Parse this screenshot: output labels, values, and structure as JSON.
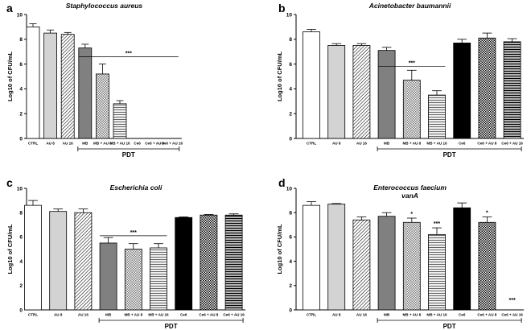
{
  "chart_data": [
    {
      "type": "bar",
      "panel": "a",
      "title": "Staphylococcus aureus",
      "ylabel": "Log10 of CFU/mL",
      "ylim": [
        0,
        10
      ],
      "yticks": [
        0,
        2,
        4,
        6,
        8,
        10
      ],
      "categories": [
        "CTRL",
        "AU 8",
        "AU 16",
        "MB",
        "MB + AU 8",
        "MB + AU 16",
        "Ce6",
        "Ce6 + AU 8",
        "Ce6 + AU 16"
      ],
      "values": [
        9.0,
        8.5,
        8.4,
        7.3,
        5.2,
        2.8,
        0,
        0,
        0
      ],
      "errors": [
        0.25,
        0.25,
        0.15,
        0.3,
        0.8,
        0.25,
        0,
        0,
        0
      ],
      "group_label": "PDT",
      "group_range": [
        3,
        8
      ],
      "annotations": [
        {
          "text": "***",
          "type": "line",
          "from": 3,
          "to": 8,
          "y": 6.6
        }
      ]
    },
    {
      "type": "bar",
      "panel": "b",
      "title": "Acinetobacter baumannii",
      "ylabel": "Log10 of CFU/mL",
      "ylim": [
        0,
        10
      ],
      "yticks": [
        0,
        2,
        4,
        6,
        8,
        10
      ],
      "categories": [
        "CTRL",
        "AU 8",
        "AU 16",
        "MB",
        "MB + AU 8",
        "MB + AU 16",
        "Ce6",
        "Ce6 + AU 8",
        "Ce6 + AU 16"
      ],
      "values": [
        8.6,
        7.5,
        7.5,
        7.1,
        4.7,
        3.5,
        7.7,
        8.1,
        7.8
      ],
      "errors": [
        0.2,
        0.15,
        0.15,
        0.25,
        0.8,
        0.35,
        0.3,
        0.4,
        0.25
      ],
      "group_label": "PDT",
      "group_range": [
        3,
        8
      ],
      "annotations": [
        {
          "text": "***",
          "type": "line",
          "from": 3,
          "to": 5,
          "y": 5.8
        }
      ]
    },
    {
      "type": "bar",
      "panel": "c",
      "title": "Escherichia coli",
      "ylabel": "Log10 of CFU/mL",
      "ylim": [
        0,
        10
      ],
      "yticks": [
        0,
        2,
        4,
        6,
        8,
        10
      ],
      "categories": [
        "CTRL",
        "AU 8",
        "AU 16",
        "MB",
        "MB + AU 8",
        "MB + AU 16",
        "Ce6",
        "Ce6 + AU 8",
        "Ce6 + AU 16"
      ],
      "values": [
        8.6,
        8.1,
        8.0,
        5.5,
        5.0,
        5.1,
        7.6,
        7.8,
        7.8
      ],
      "errors": [
        0.4,
        0.2,
        0.3,
        0.45,
        0.45,
        0.35,
        0.05,
        0.05,
        0.1
      ],
      "group_label": "PDT",
      "group_range": [
        3,
        8
      ],
      "annotations": [
        {
          "text": "***",
          "type": "line",
          "from": 3,
          "to": 5,
          "y": 6.1
        }
      ]
    },
    {
      "type": "bar",
      "panel": "d",
      "title": "Enterococcus faecium",
      "subtitle": "vanA",
      "ylabel": "Log10 of CFU/mL",
      "ylim": [
        0,
        10
      ],
      "yticks": [
        0,
        2,
        4,
        6,
        8,
        10
      ],
      "categories": [
        "CTRL",
        "AU 8",
        "AU 16",
        "MB",
        "MB + AU 8",
        "MB + AU 16",
        "Ce6",
        "Ce6 + AU 8",
        "Ce6 + AU 16"
      ],
      "values": [
        8.6,
        8.7,
        7.4,
        7.7,
        7.2,
        6.2,
        8.4,
        7.2,
        0
      ],
      "errors": [
        0.3,
        0.05,
        0.25,
        0.3,
        0.35,
        0.55,
        0.4,
        0.45,
        0
      ],
      "group_label": "PDT",
      "group_range": [
        3,
        8
      ],
      "annotations": [
        {
          "text": "*",
          "type": "bar",
          "index": 4
        },
        {
          "text": "***",
          "type": "bar",
          "index": 5
        },
        {
          "text": "*",
          "type": "bar",
          "index": 7
        },
        {
          "text": "***",
          "type": "bar",
          "index": 8
        }
      ]
    }
  ],
  "fills": [
    "#ffffff",
    "#d3d3d3",
    "hatch-diagonal",
    "#808080",
    "hatch-check",
    "hatch-horizontal",
    "#000000",
    "hatch-check-dark",
    "hatch-horizontal-dark"
  ],
  "colors": {
    "axis": "#000000",
    "bar_stroke": "#000000"
  }
}
